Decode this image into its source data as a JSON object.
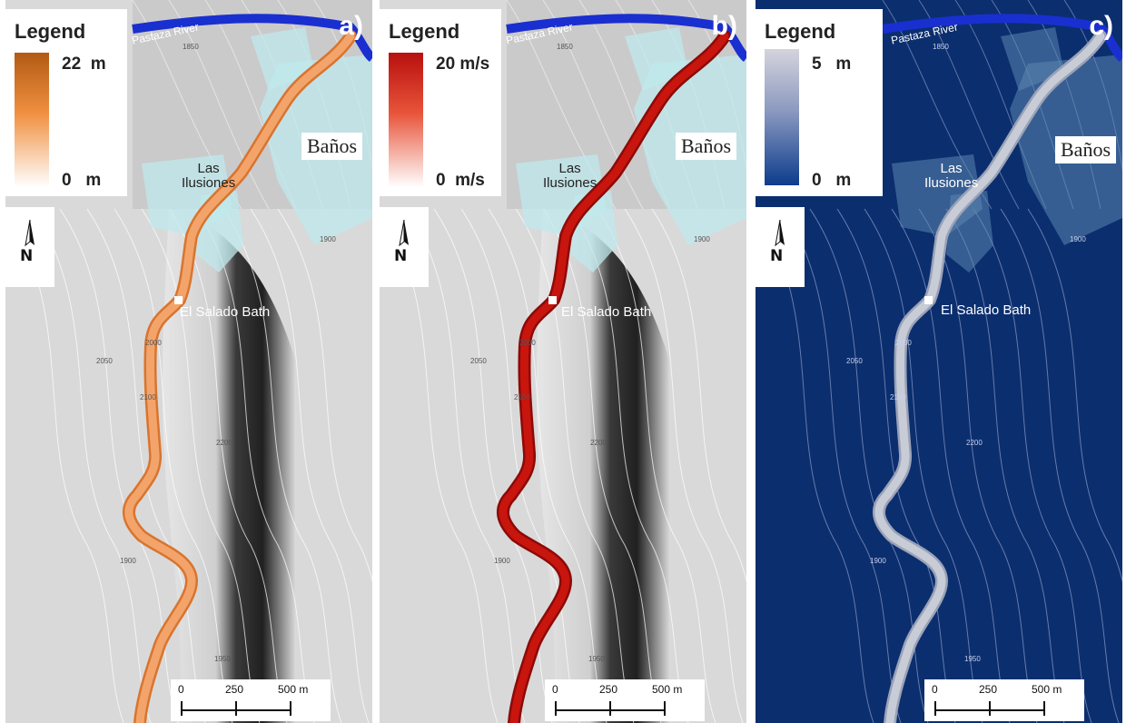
{
  "panels": [
    {
      "letter": "a)",
      "legend": {
        "title": "Legend",
        "max": "22  m",
        "min": "0   m",
        "ramp_top": "#b25a14",
        "ramp_mid": "#f09040",
        "ramp_bottom": "#ffffff"
      },
      "flow_color": "#f3a46b",
      "flow_edge": "#d9742e",
      "theme": "light"
    },
    {
      "letter": "b)",
      "legend": {
        "title": "Legend",
        "max": "20 m/s",
        "min": "0  m/s",
        "ramp_top": "#b8100e",
        "ramp_mid": "#e8543a",
        "ramp_bottom": "#ffffff"
      },
      "flow_color": "#c8150e",
      "flow_edge": "#8c0a08",
      "theme": "light"
    },
    {
      "letter": "c)",
      "legend": {
        "title": "Legend",
        "max": "5   m",
        "min": "0   m",
        "ramp_top": "#d4d4dc",
        "ramp_mid": "#8c9ac0",
        "ramp_bottom": "#0c3c8c"
      },
      "flow_color": "#c8ccd6",
      "flow_edge": "#9aa2b8",
      "theme": "dark"
    }
  ],
  "places": {
    "river": "Pastaza River",
    "las_ilusiones": "Las\nIlusiones",
    "el_salado": "El Salado Bath",
    "banos": "Baños"
  },
  "contour_labels": [
    "1850",
    "1900",
    "2000",
    "2050",
    "2100",
    "2200",
    "1950",
    "1900"
  ],
  "north_label": "N",
  "scale_bar": {
    "ticks": [
      "0",
      "250",
      "500 m"
    ]
  },
  "colors": {
    "hillshade_light": "#d8d8d8",
    "hillshade_dark": "#2a2a2a",
    "urban_overlay": "#bfe8ec",
    "navy": "#0b2e6e",
    "river_blue": "#1a2fd0"
  }
}
